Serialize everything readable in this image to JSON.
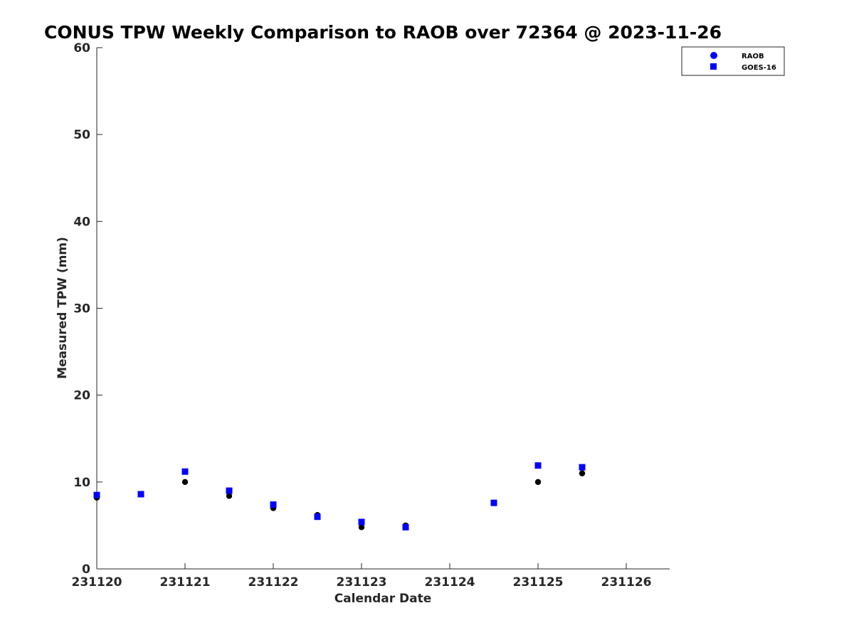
{
  "chart_data": {
    "type": "scatter",
    "title": "CONUS TPW Weekly Comparison to RAOB over 72364 @ 2023-11-26",
    "xlabel": "Calendar Date",
    "ylabel": "Measured TPW (mm)",
    "x_ticks": [
      "231120",
      "231121",
      "231122",
      "231123",
      "231124",
      "231125",
      "231126"
    ],
    "xlim": [
      "231120",
      "231126 12Z"
    ],
    "ylim": [
      0,
      60
    ],
    "y_ticks": [
      0,
      10,
      20,
      30,
      40,
      50,
      60
    ],
    "grid": false,
    "legend_position": "top-right",
    "legend": [
      {
        "label": "RAOB",
        "marker": "circle",
        "color": "#0000ff"
      },
      {
        "label": "GOES-16",
        "marker": "square",
        "color": "#0000ff"
      }
    ],
    "series": [
      {
        "name": "RAOB",
        "marker": "circle",
        "color": "#000000",
        "points": [
          {
            "x": "231120 00Z",
            "y": 8.2
          },
          {
            "x": "231120 12Z",
            "y": 8.6
          },
          {
            "x": "231121 00Z",
            "y": 10.0
          },
          {
            "x": "231121 12Z",
            "y": 8.4
          },
          {
            "x": "231122 00Z",
            "y": 7.0
          },
          {
            "x": "231122 12Z",
            "y": 6.2
          },
          {
            "x": "231123 00Z",
            "y": 4.8
          },
          {
            "x": "231123 12Z",
            "y": 5.0
          },
          {
            "x": "231124 12Z",
            "y": 7.6
          },
          {
            "x": "231125 00Z",
            "y": 10.0
          },
          {
            "x": "231125 12Z",
            "y": 11.0
          }
        ]
      },
      {
        "name": "GOES-16",
        "marker": "square",
        "color": "#0000ff",
        "points": [
          {
            "x": "231120 00Z",
            "y": 8.5
          },
          {
            "x": "231120 12Z",
            "y": 8.6
          },
          {
            "x": "231121 00Z",
            "y": 11.2
          },
          {
            "x": "231121 12Z",
            "y": 9.0
          },
          {
            "x": "231122 00Z",
            "y": 7.4
          },
          {
            "x": "231122 12Z",
            "y": 6.0
          },
          {
            "x": "231123 00Z",
            "y": 5.4
          },
          {
            "x": "231123 12Z",
            "y": 4.8
          },
          {
            "x": "231124 12Z",
            "y": 7.6
          },
          {
            "x": "231125 00Z",
            "y": 11.9
          },
          {
            "x": "231125 12Z",
            "y": 11.7
          }
        ]
      }
    ]
  }
}
